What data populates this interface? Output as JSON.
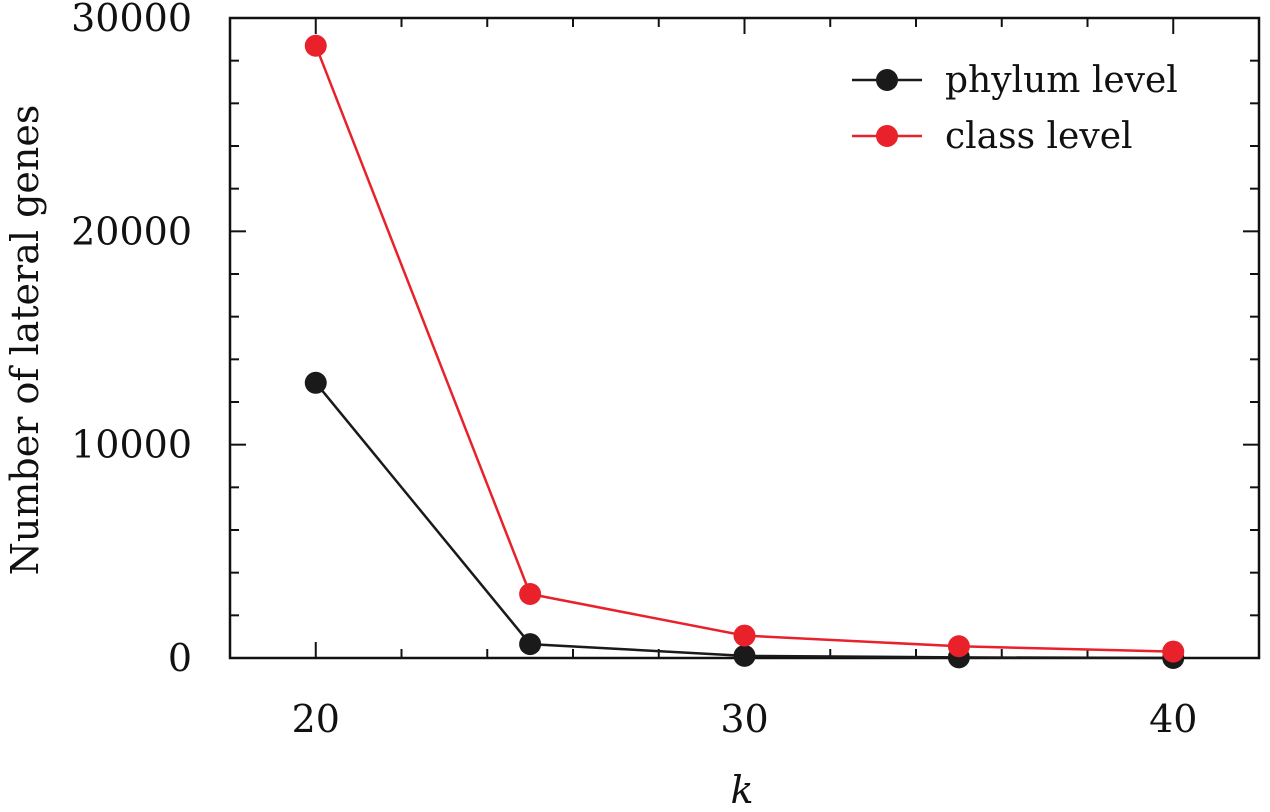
{
  "chart_data": {
    "type": "line",
    "xlabel": "k",
    "ylabel": "Number of lateral genes",
    "xlim": [
      18,
      42
    ],
    "ylim": [
      0,
      30000
    ],
    "x_ticks": [
      20,
      30,
      40
    ],
    "x_minor_ticks": [
      22,
      24,
      26,
      28,
      32,
      34,
      36,
      38
    ],
    "y_ticks": [
      0,
      10000,
      20000,
      30000
    ],
    "y_minor_ticks": [
      2000,
      4000,
      6000,
      8000,
      12000,
      14000,
      16000,
      18000,
      22000,
      24000,
      26000,
      28000
    ],
    "x_tick_labels": [
      "20",
      "30",
      "40"
    ],
    "y_tick_labels": [
      "0",
      "10000",
      "20000",
      "30000"
    ],
    "legend_position": "top-right",
    "grid": false,
    "series": [
      {
        "name": "phylum level",
        "color": "#1a1a1a",
        "x": [
          20,
          25,
          30,
          35,
          40
        ],
        "y": [
          12900,
          650,
          100,
          30,
          0
        ]
      },
      {
        "name": "class level",
        "color": "#e8212b",
        "x": [
          20,
          25,
          30,
          35,
          40
        ],
        "y": [
          28700,
          3000,
          1050,
          550,
          300
        ]
      }
    ]
  }
}
